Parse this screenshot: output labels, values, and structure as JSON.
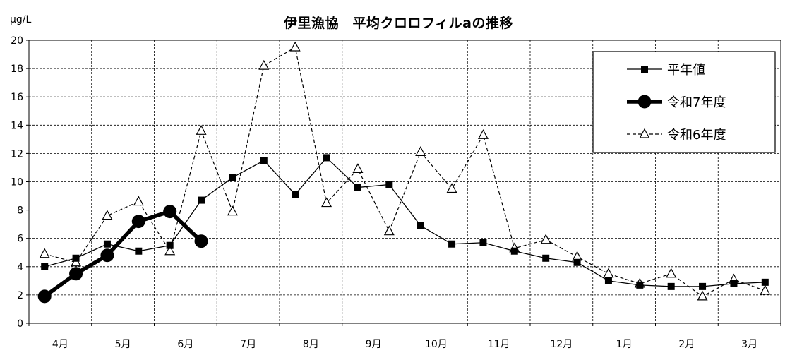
{
  "chart_data": {
    "type": "line",
    "title": "伊里漁協　平均クロロフィルaの推移",
    "ylabel": "μg/L",
    "xlabel": "",
    "ylim": [
      0,
      20
    ],
    "yticks": [
      0,
      2,
      4,
      6,
      8,
      10,
      12,
      14,
      16,
      18,
      20
    ],
    "month_labels": [
      "4月",
      "5月",
      "6月",
      "7月",
      "8月",
      "9月",
      "10月",
      "11月",
      "12月",
      "1月",
      "2月",
      "3月"
    ],
    "grid": true,
    "legend_position": "top-right",
    "series": [
      {
        "name": "平年値",
        "style": "solid-square",
        "color": "#000000",
        "x": [
          0,
          1,
          2,
          3,
          4,
          5,
          6,
          7,
          8,
          9,
          10,
          11,
          12,
          13,
          14,
          15,
          16,
          17,
          18,
          19,
          20,
          21,
          22,
          23
        ],
        "values": [
          4.0,
          4.6,
          5.6,
          5.1,
          5.5,
          8.7,
          10.3,
          11.5,
          9.1,
          11.7,
          9.6,
          9.8,
          6.9,
          5.6,
          5.7,
          5.1,
          4.6,
          4.3,
          3.0,
          2.7,
          2.6,
          2.6,
          2.8,
          2.9
        ]
      },
      {
        "name": "令和7年度",
        "style": "bold-circle",
        "color": "#000000",
        "x": [
          0,
          1,
          2,
          3,
          4,
          5
        ],
        "values": [
          1.9,
          3.5,
          4.8,
          7.2,
          7.9,
          5.8
        ]
      },
      {
        "name": "令和6年度",
        "style": "dashed-triangle",
        "color": "#000000",
        "x": [
          0,
          1,
          2,
          3,
          4,
          5,
          6,
          7,
          8,
          9,
          10,
          11,
          12,
          13,
          14,
          15,
          16,
          17,
          18,
          19,
          20,
          21,
          22,
          23
        ],
        "values": [
          4.9,
          4.3,
          7.6,
          8.6,
          5.1,
          13.6,
          7.9,
          18.2,
          19.5,
          8.5,
          10.9,
          6.5,
          12.1,
          9.5,
          13.3,
          5.3,
          5.9,
          4.7,
          3.5,
          2.8,
          3.5,
          1.9,
          3.1,
          2.3
        ]
      }
    ]
  }
}
